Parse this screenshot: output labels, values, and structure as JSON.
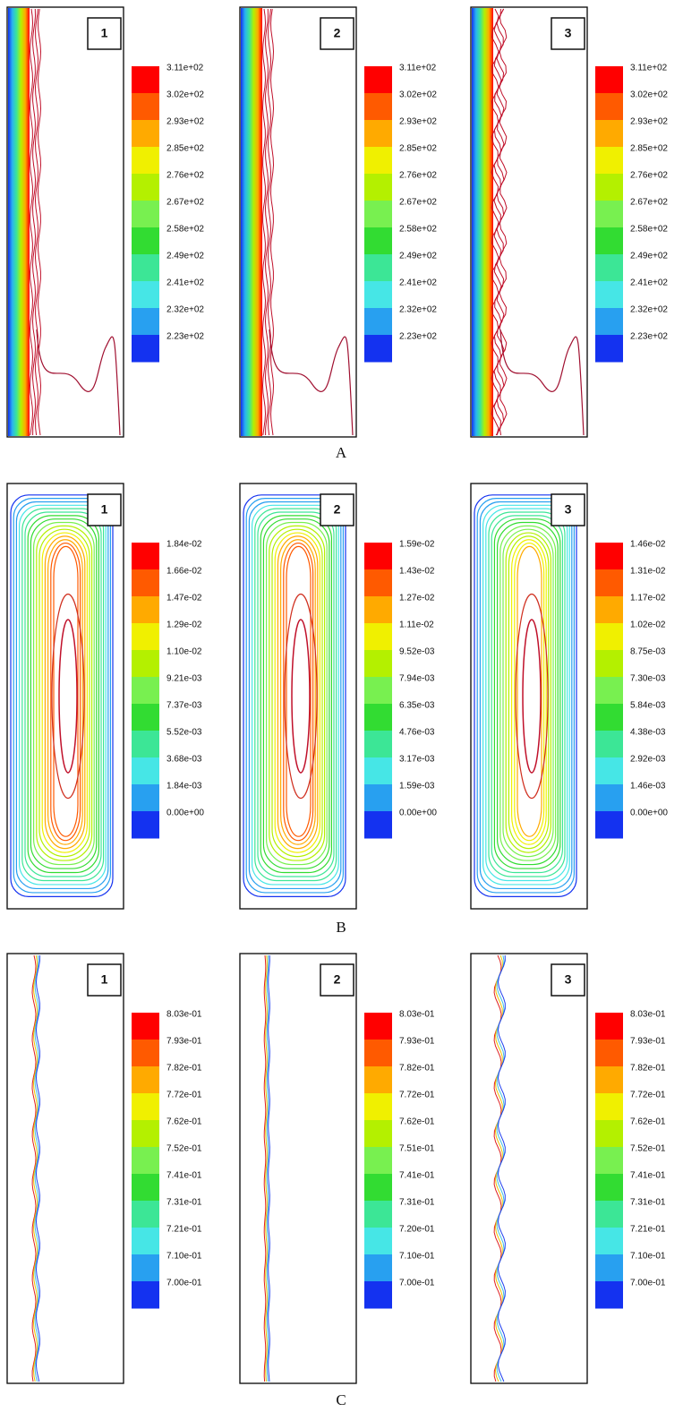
{
  "rows": [
    {
      "letter": "A",
      "panels": [
        {
          "label": "1",
          "colorbar": [
            "3.11e+02",
            "3.02e+02",
            "2.93e+02",
            "2.85e+02",
            "2.76e+02",
            "2.67e+02",
            "2.58e+02",
            "2.49e+02",
            "2.41e+02",
            "2.32e+02",
            "2.23e+02"
          ]
        },
        {
          "label": "2",
          "colorbar": [
            "3.11e+02",
            "3.02e+02",
            "2.93e+02",
            "2.85e+02",
            "2.76e+02",
            "2.67e+02",
            "2.58e+02",
            "2.49e+02",
            "2.41e+02",
            "2.32e+02",
            "2.23e+02"
          ]
        },
        {
          "label": "3",
          "colorbar": [
            "3.11e+02",
            "3.02e+02",
            "2.93e+02",
            "2.85e+02",
            "2.76e+02",
            "2.67e+02",
            "2.58e+02",
            "2.49e+02",
            "2.41e+02",
            "2.32e+02",
            "2.23e+02"
          ]
        }
      ]
    },
    {
      "letter": "B",
      "panels": [
        {
          "label": "1",
          "colorbar": [
            "1.84e-02",
            "1.66e-02",
            "1.47e-02",
            "1.29e-02",
            "1.10e-02",
            "9.21e-03",
            "7.37e-03",
            "5.52e-03",
            "3.68e-03",
            "1.84e-03",
            "0.00e+00"
          ]
        },
        {
          "label": "2",
          "colorbar": [
            "1.59e-02",
            "1.43e-02",
            "1.27e-02",
            "1.11e-02",
            "9.52e-03",
            "7.94e-03",
            "6.35e-03",
            "4.76e-03",
            "3.17e-03",
            "1.59e-03",
            "0.00e+00"
          ]
        },
        {
          "label": "3",
          "colorbar": [
            "1.46e-02",
            "1.31e-02",
            "1.17e-02",
            "1.02e-02",
            "8.75e-03",
            "7.30e-03",
            "5.84e-03",
            "4.38e-03",
            "2.92e-03",
            "1.46e-03",
            "0.00e+00"
          ]
        }
      ]
    },
    {
      "letter": "C",
      "panels": [
        {
          "label": "1",
          "colorbar": [
            "8.03e-01",
            "7.93e-01",
            "7.82e-01",
            "7.72e-01",
            "7.62e-01",
            "7.52e-01",
            "7.41e-01",
            "7.31e-01",
            "7.21e-01",
            "7.10e-01",
            "7.00e-01"
          ]
        },
        {
          "label": "2",
          "colorbar": [
            "8.03e-01",
            "7.93e-01",
            "7.82e-01",
            "7.72e-01",
            "7.62e-01",
            "7.51e-01",
            "7.41e-01",
            "7.31e-01",
            "7.20e-01",
            "7.10e-01",
            "7.00e-01"
          ]
        },
        {
          "label": "3",
          "colorbar": [
            "8.03e-01",
            "7.93e-01",
            "7.82e-01",
            "7.72e-01",
            "7.62e-01",
            "7.52e-01",
            "7.41e-01",
            "7.31e-01",
            "7.21e-01",
            "7.10e-01",
            "7.00e-01"
          ]
        }
      ]
    }
  ]
}
